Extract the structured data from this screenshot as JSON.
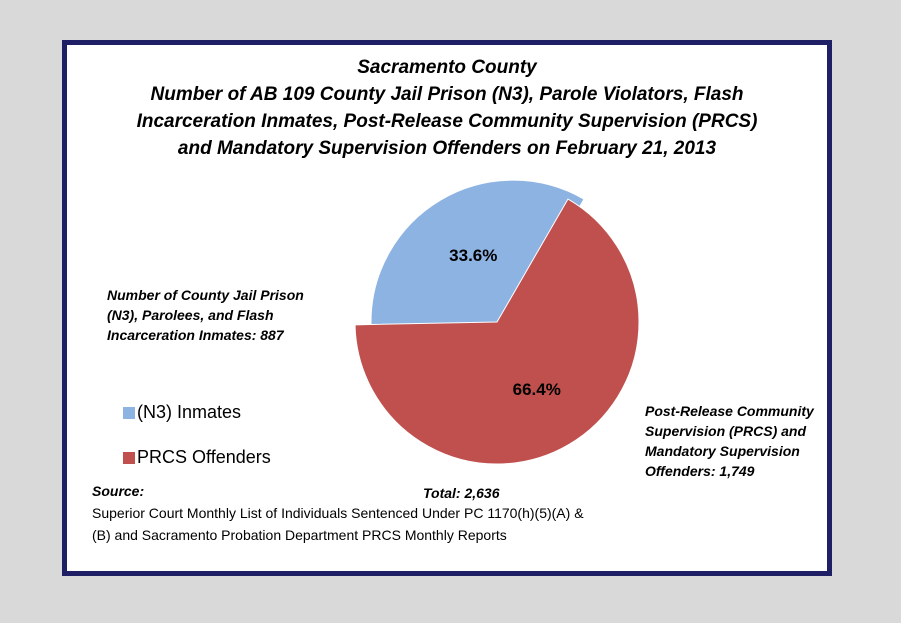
{
  "chart_data": {
    "type": "pie",
    "title": "Sacramento County",
    "subtitle_lines": [
      "Number of AB 109 County Jail Prison (N3), Parole Violators,  Flash",
      "Incarceration Inmates, Post-Release Community Supervision (PRCS)",
      "and Mandatory Supervision Offenders  on February 21, 2013"
    ],
    "slices": [
      {
        "name": "(N3) Inmates",
        "value": 887,
        "percent_label": "33.6%",
        "color": "#8db3e2",
        "annotation_lines": [
          "Number of County Jail Prison",
          "(N3), Parolees,  and Flash",
          "Incarceration Inmates:  887"
        ]
      },
      {
        "name": "PRCS Offenders",
        "value": 1749,
        "percent_label": "66.4%",
        "color": "#c0504d",
        "annotation_lines": [
          "Post-Release  Community",
          "Supervision (PRCS) and",
          "Mandatory Supervision",
          "Offenders:  1,749"
        ]
      }
    ],
    "total_label": "Total:  2,636",
    "legend_position": "left"
  },
  "source": {
    "title": "Source:",
    "lines": [
      "Superior Court Monthly List of Individuals Sentenced Under PC 1170(h)(5)(A) &",
      "(B) and Sacramento Probation Department PRCS Monthly Reports"
    ]
  }
}
